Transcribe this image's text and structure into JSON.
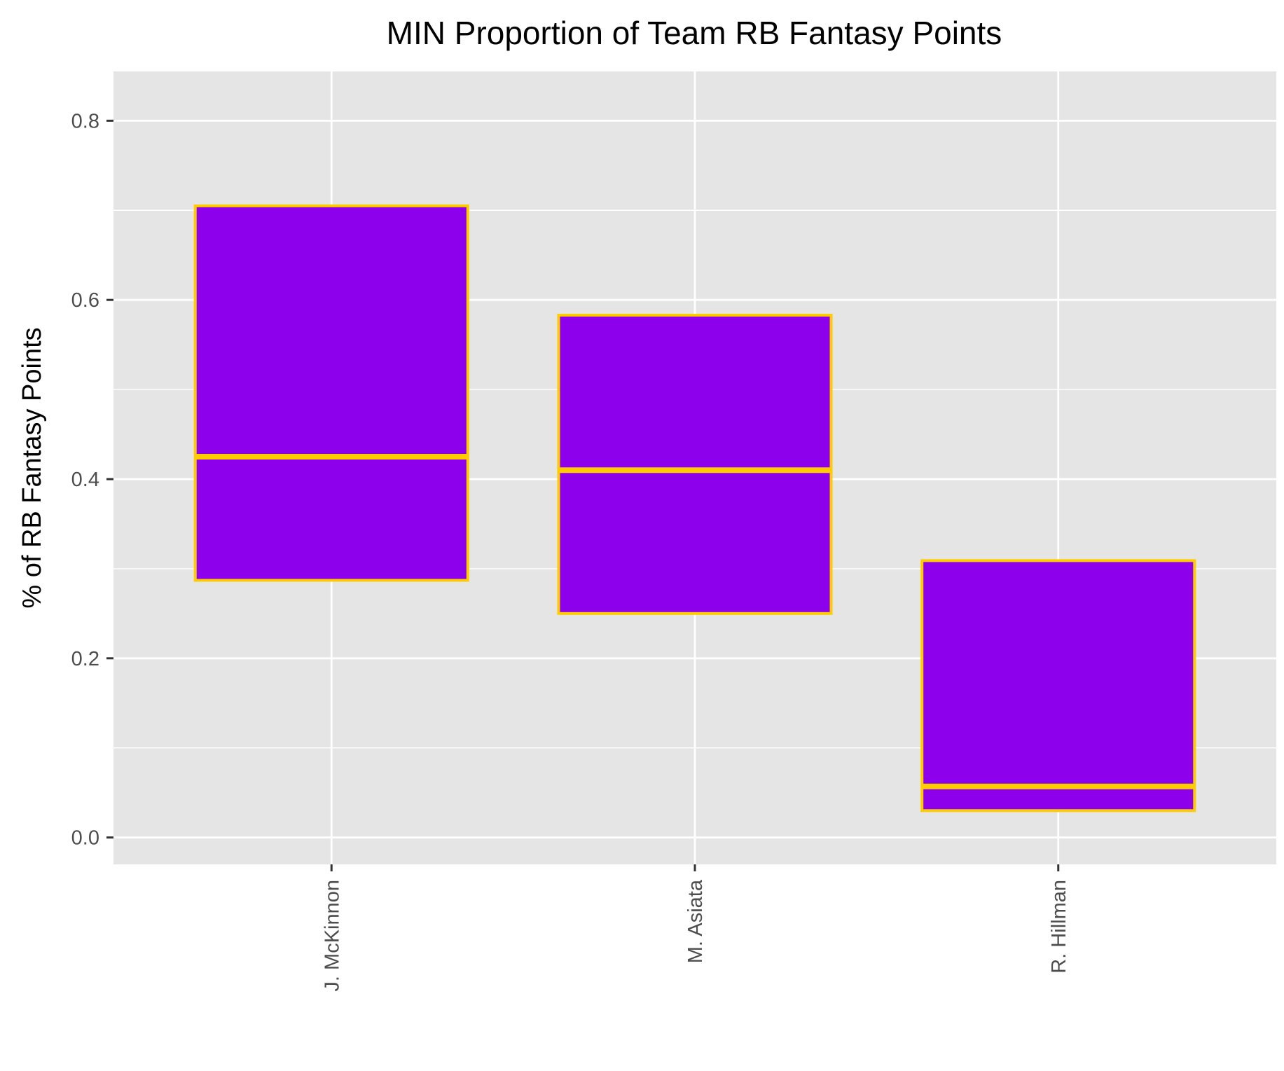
{
  "chart_data": {
    "type": "box",
    "title": "MIN Proportion of Team RB Fantasy Points",
    "xlabel": "",
    "ylabel": "% of RB Fantasy Points",
    "ylim": [
      -0.03,
      0.855
    ],
    "yticks": [
      "0.0",
      "0.2",
      "0.4",
      "0.6",
      "0.8"
    ],
    "grid": true,
    "categories": [
      "J. McKinnon",
      "M. Asiata",
      "R. Hillman"
    ],
    "boxes": [
      {
        "category": "J. McKinnon",
        "q1": 0.287,
        "median": 0.425,
        "q3": 0.705
      },
      {
        "category": "M. Asiata",
        "q1": 0.25,
        "median": 0.41,
        "q3": 0.583
      },
      {
        "category": "R. Hillman",
        "q1": 0.03,
        "median": 0.057,
        "q3": 0.309
      }
    ],
    "colors": {
      "panel_bg": "#e5e5e5",
      "grid": "#ffffff",
      "box_fill": "#8c00eb",
      "box_outline": "#ffcc00",
      "tick_text": "#4d4d4d"
    }
  }
}
